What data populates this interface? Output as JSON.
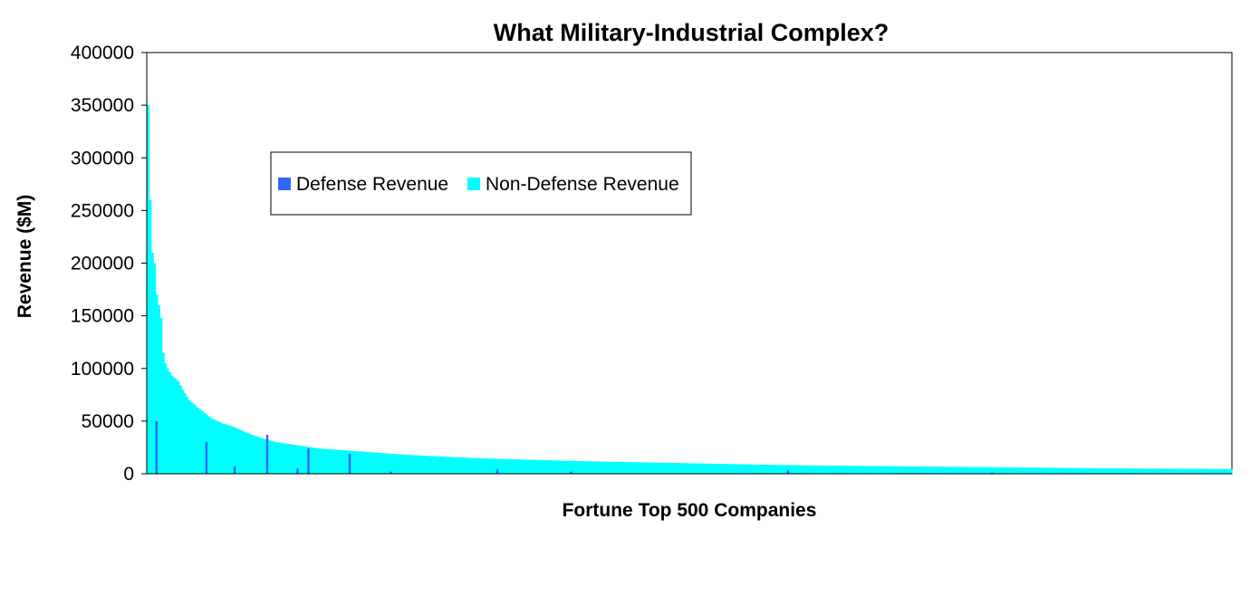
{
  "chart_data": {
    "type": "bar",
    "title": "What Military-Industrial Complex?",
    "xlabel": "Fortune Top 500 Companies",
    "ylabel": "Revenue ($M)",
    "ylim": [
      0,
      400000
    ],
    "yticks": [
      0,
      50000,
      100000,
      150000,
      200000,
      250000,
      300000,
      350000,
      400000
    ],
    "stacked": true,
    "grid": false,
    "legend_position": "top-left",
    "legend": [
      "Defense Revenue",
      "Non-Defense Revenue"
    ],
    "colors": {
      "defense": "#3366ff",
      "non_defense": "#00ffff"
    },
    "category_count": 500,
    "non_defense_revenue_curve": {
      "rank": [
        1,
        2,
        3,
        4,
        5,
        6,
        7,
        8,
        9,
        10,
        12,
        15,
        18,
        20,
        25,
        30,
        35,
        40,
        50,
        60,
        70,
        80,
        100,
        120,
        150,
        200,
        250,
        300,
        350,
        400,
        450,
        500
      ],
      "value": [
        350000,
        260000,
        210000,
        200000,
        170000,
        160000,
        148000,
        115000,
        105000,
        100000,
        93000,
        88000,
        76000,
        70000,
        61000,
        53000,
        48000,
        45000,
        36000,
        30000,
        27000,
        24000,
        21000,
        18000,
        15000,
        12000,
        10000,
        8000,
        7000,
        6000,
        5000,
        4500
      ]
    },
    "defense_revenue": [
      {
        "rank": 5,
        "value": 50000
      },
      {
        "rank": 28,
        "value": 30000
      },
      {
        "rank": 41,
        "value": 7000
      },
      {
        "rank": 56,
        "value": 37000
      },
      {
        "rank": 70,
        "value": 5000
      },
      {
        "rank": 75,
        "value": 24000
      },
      {
        "rank": 94,
        "value": 19000
      },
      {
        "rank": 113,
        "value": 2000
      },
      {
        "rank": 162,
        "value": 4000
      },
      {
        "rank": 196,
        "value": 2000
      },
      {
        "rank": 296,
        "value": 3500
      },
      {
        "rank": 390,
        "value": 1000
      }
    ]
  }
}
